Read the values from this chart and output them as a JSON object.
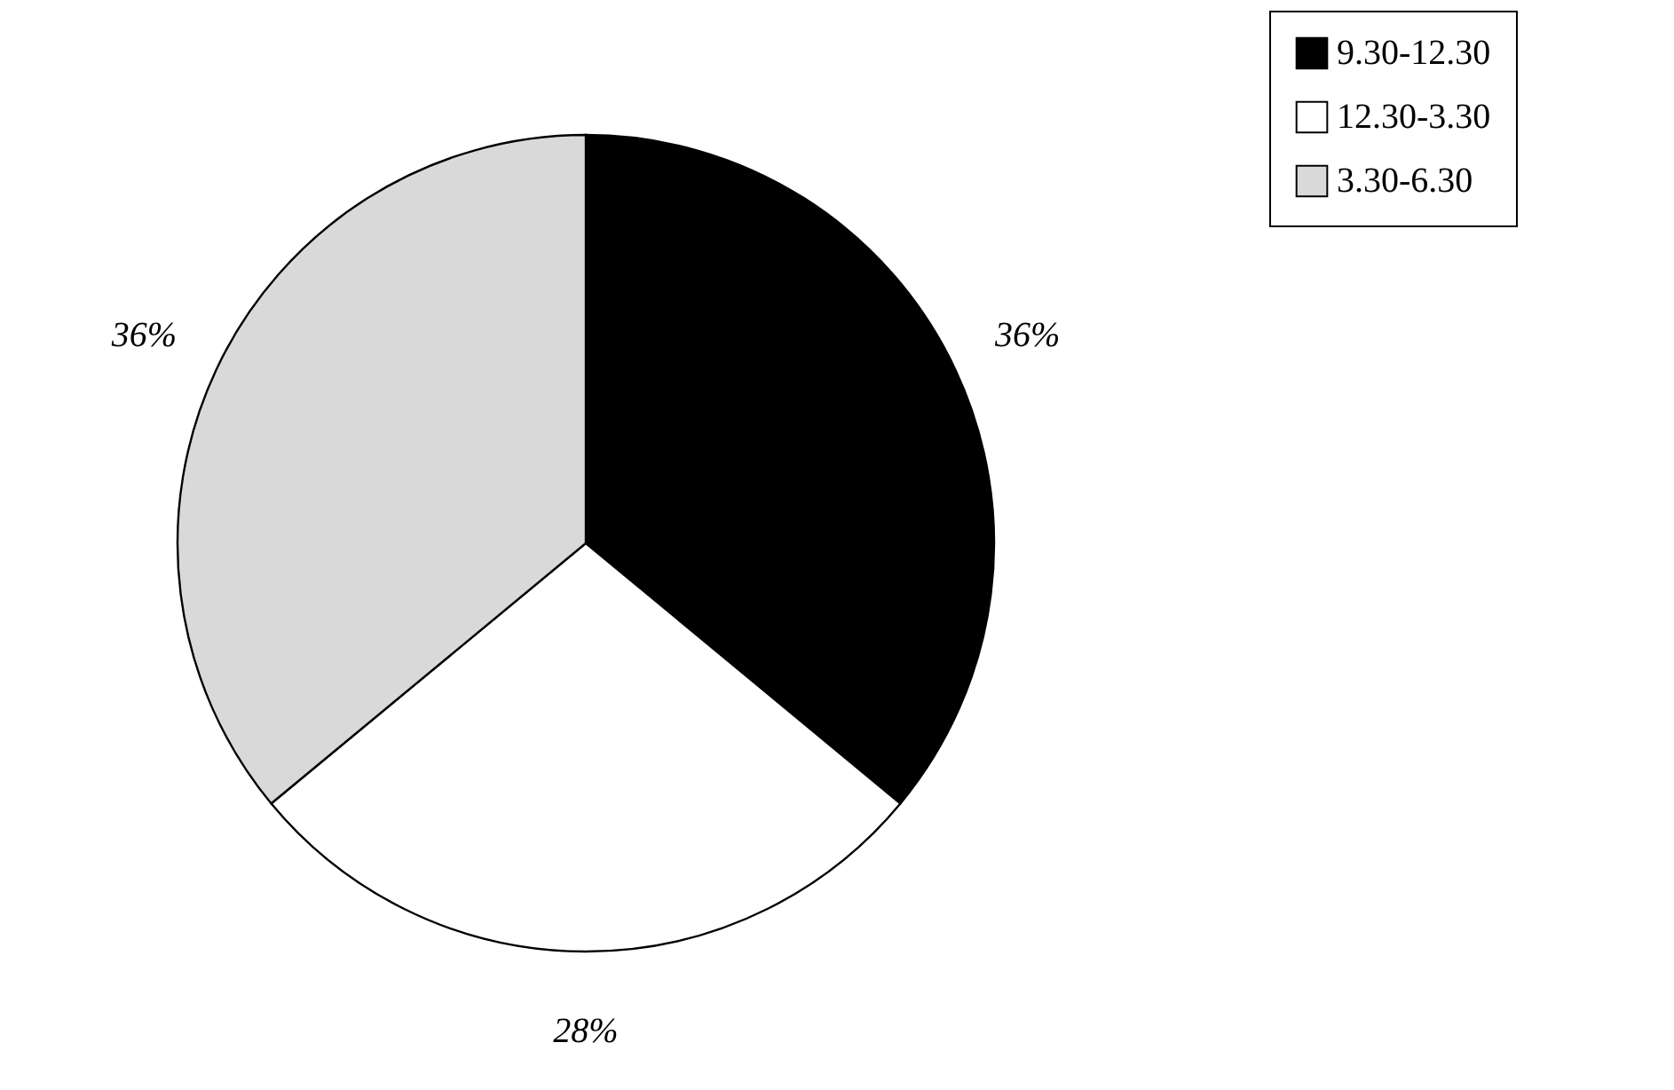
{
  "chart_data": {
    "type": "pie",
    "categories": [
      "9.30-12.30",
      "12.30-3.30",
      "3.30-6.30"
    ],
    "values": [
      36,
      28,
      36
    ],
    "colors": [
      "#000000",
      "#ffffff",
      "#d9d9d9"
    ],
    "value_labels": [
      "36%",
      "28%",
      "36%"
    ],
    "legend": "right"
  }
}
